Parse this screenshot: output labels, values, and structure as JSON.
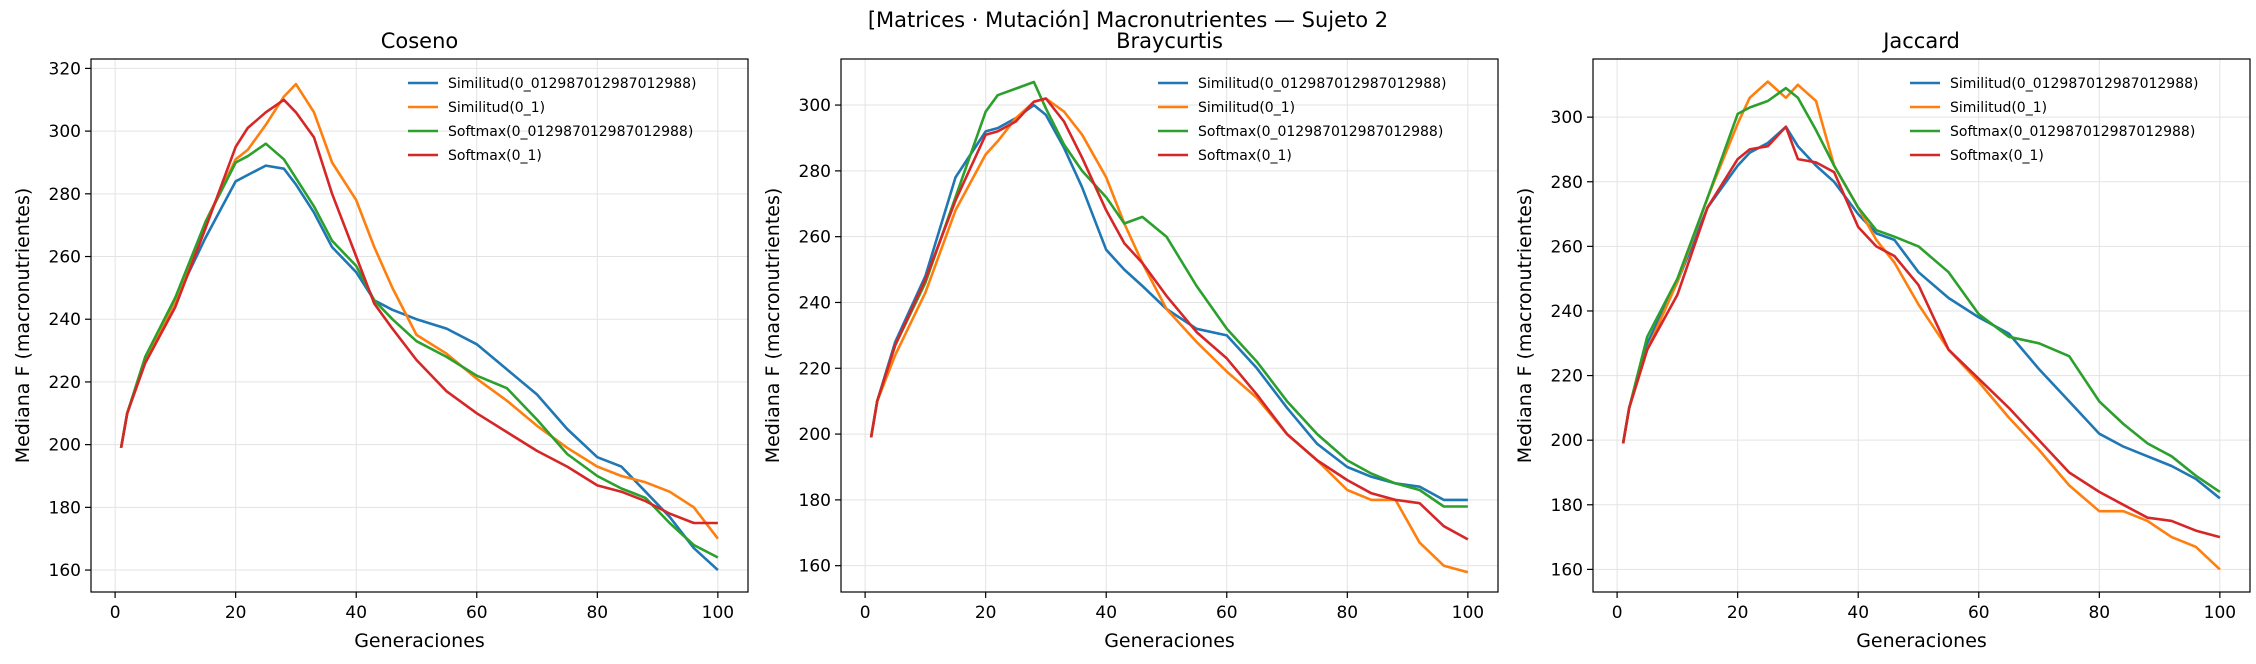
{
  "figure": {
    "suptitle": "[Matrices · Mutación] Macronutrientes — Sujeto 2"
  },
  "legend_labels": [
    "Similitud(0_012987012987012988)",
    "Similitud(0_1)",
    "Softmax(0_012987012987012988)",
    "Softmax(0_1)"
  ],
  "colors": [
    "#1f77b4",
    "#ff7f0e",
    "#2ca02c",
    "#d62728"
  ],
  "chart_data": [
    {
      "type": "line",
      "title": "Coseno",
      "xlabel": "Generaciones",
      "ylabel": "Mediana F (macronutrientes)",
      "xlim": [
        -4,
        105
      ],
      "ylim": [
        153,
        323
      ],
      "xticks": [
        0,
        20,
        40,
        60,
        80,
        100
      ],
      "yticks": [
        160,
        180,
        200,
        220,
        240,
        260,
        280,
        300,
        320
      ],
      "grid": true,
      "legend_loc": "upper right",
      "x": [
        1,
        2,
        5,
        10,
        15,
        20,
        22,
        25,
        28,
        30,
        33,
        36,
        40,
        43,
        46,
        50,
        55,
        60,
        65,
        70,
        75,
        80,
        84,
        88,
        92,
        96,
        100
      ],
      "series": [
        {
          "name": "Similitud(0_012987012987012988)",
          "values": [
            199,
            210,
            227,
            246,
            266,
            284,
            286,
            289,
            288,
            283,
            274,
            263,
            255,
            246,
            243,
            240,
            237,
            232,
            224,
            216,
            205,
            196,
            193,
            185,
            177,
            167,
            160
          ]
        },
        {
          "name": "Similitud(0_1)",
          "values": [
            199,
            210,
            227,
            246,
            271,
            291,
            294,
            302,
            311,
            315,
            306,
            290,
            278,
            263,
            250,
            235,
            229,
            221,
            214,
            206,
            199,
            193,
            190,
            188,
            185,
            180,
            170
          ]
        },
        {
          "name": "Softmax(0_012987012987012988)",
          "values": [
            199,
            210,
            228,
            247,
            271,
            290,
            292,
            296,
            291,
            285,
            276,
            265,
            257,
            246,
            240,
            233,
            228,
            222,
            218,
            208,
            197,
            190,
            186,
            183,
            175,
            168,
            164
          ]
        },
        {
          "name": "Softmax(0_1)",
          "values": [
            199,
            210,
            226,
            244,
            269,
            295,
            301,
            306,
            310,
            306,
            298,
            280,
            260,
            245,
            237,
            227,
            217,
            210,
            204,
            198,
            193,
            187,
            185,
            182,
            178,
            175,
            175
          ]
        }
      ]
    },
    {
      "type": "line",
      "title": "Braycurtis",
      "xlabel": "Generaciones",
      "ylabel": "Mediana F (macronutrientes)",
      "xlim": [
        -4,
        105
      ],
      "ylim": [
        152,
        314
      ],
      "xticks": [
        0,
        20,
        40,
        60,
        80,
        100
      ],
      "yticks": [
        160,
        180,
        200,
        220,
        240,
        260,
        280,
        300
      ],
      "grid": true,
      "legend_loc": "upper right",
      "x": [
        1,
        2,
        5,
        10,
        15,
        20,
        22,
        25,
        28,
        30,
        33,
        36,
        40,
        43,
        46,
        50,
        55,
        60,
        65,
        70,
        75,
        80,
        84,
        88,
        92,
        96,
        100
      ],
      "series": [
        {
          "name": "Similitud(0_012987012987012988)",
          "values": [
            199,
            210,
            228,
            248,
            278,
            292,
            293,
            296,
            300,
            297,
            287,
            275,
            256,
            250,
            245,
            238,
            232,
            230,
            220,
            208,
            197,
            190,
            187,
            185,
            184,
            180,
            180
          ]
        },
        {
          "name": "Similitud(0_1)",
          "values": [
            199,
            210,
            224,
            243,
            268,
            285,
            289,
            296,
            301,
            302,
            298,
            291,
            278,
            264,
            252,
            238,
            228,
            219,
            211,
            200,
            192,
            183,
            180,
            180,
            167,
            160,
            158
          ]
        },
        {
          "name": "Softmax(0_012987012987012988)",
          "values": [
            199,
            210,
            227,
            246,
            272,
            298,
            303,
            305,
            307,
            299,
            288,
            280,
            272,
            264,
            266,
            260,
            245,
            232,
            222,
            210,
            200,
            192,
            188,
            185,
            183,
            178,
            178
          ]
        },
        {
          "name": "Softmax(0_1)",
          "values": [
            199,
            210,
            227,
            247,
            271,
            291,
            292,
            295,
            301,
            302,
            295,
            284,
            268,
            258,
            252,
            242,
            231,
            223,
            212,
            200,
            192,
            186,
            182,
            180,
            179,
            172,
            168
          ]
        }
      ]
    },
    {
      "type": "line",
      "title": "Jaccard",
      "xlabel": "Generaciones",
      "ylabel": "Mediana F (macronutrientes)",
      "xlim": [
        -4,
        105
      ],
      "ylim": [
        153,
        318
      ],
      "xticks": [
        0,
        20,
        40,
        60,
        80,
        100
      ],
      "yticks": [
        160,
        180,
        200,
        220,
        240,
        260,
        280,
        300
      ],
      "grid": true,
      "legend_loc": "upper right",
      "x": [
        1,
        2,
        5,
        10,
        15,
        20,
        22,
        25,
        28,
        30,
        33,
        36,
        40,
        43,
        46,
        50,
        55,
        60,
        65,
        70,
        75,
        80,
        84,
        88,
        92,
        96,
        100
      ],
      "series": [
        {
          "name": "Similitud(0_012987012987012988)",
          "values": [
            199,
            210,
            230,
            249,
            272,
            285,
            289,
            292,
            297,
            291,
            285,
            280,
            270,
            264,
            262,
            252,
            244,
            238,
            233,
            222,
            212,
            202,
            198,
            195,
            192,
            188,
            182
          ]
        },
        {
          "name": "Similitud(0_1)",
          "values": [
            199,
            210,
            228,
            249,
            275,
            298,
            306,
            311,
            306,
            310,
            305,
            285,
            272,
            262,
            255,
            242,
            228,
            218,
            207,
            197,
            186,
            178,
            178,
            175,
            170,
            167,
            160
          ]
        },
        {
          "name": "Softmax(0_012987012987012988)",
          "values": [
            199,
            210,
            232,
            250,
            275,
            301,
            303,
            305,
            309,
            306,
            296,
            285,
            272,
            265,
            263,
            260,
            252,
            239,
            232,
            230,
            226,
            212,
            205,
            199,
            195,
            189,
            184
          ]
        },
        {
          "name": "Softmax(0_1)",
          "values": [
            199,
            210,
            228,
            245,
            272,
            287,
            290,
            291,
            297,
            287,
            286,
            283,
            266,
            260,
            257,
            248,
            228,
            219,
            210,
            200,
            190,
            184,
            180,
            176,
            175,
            172,
            170
          ]
        }
      ]
    }
  ]
}
